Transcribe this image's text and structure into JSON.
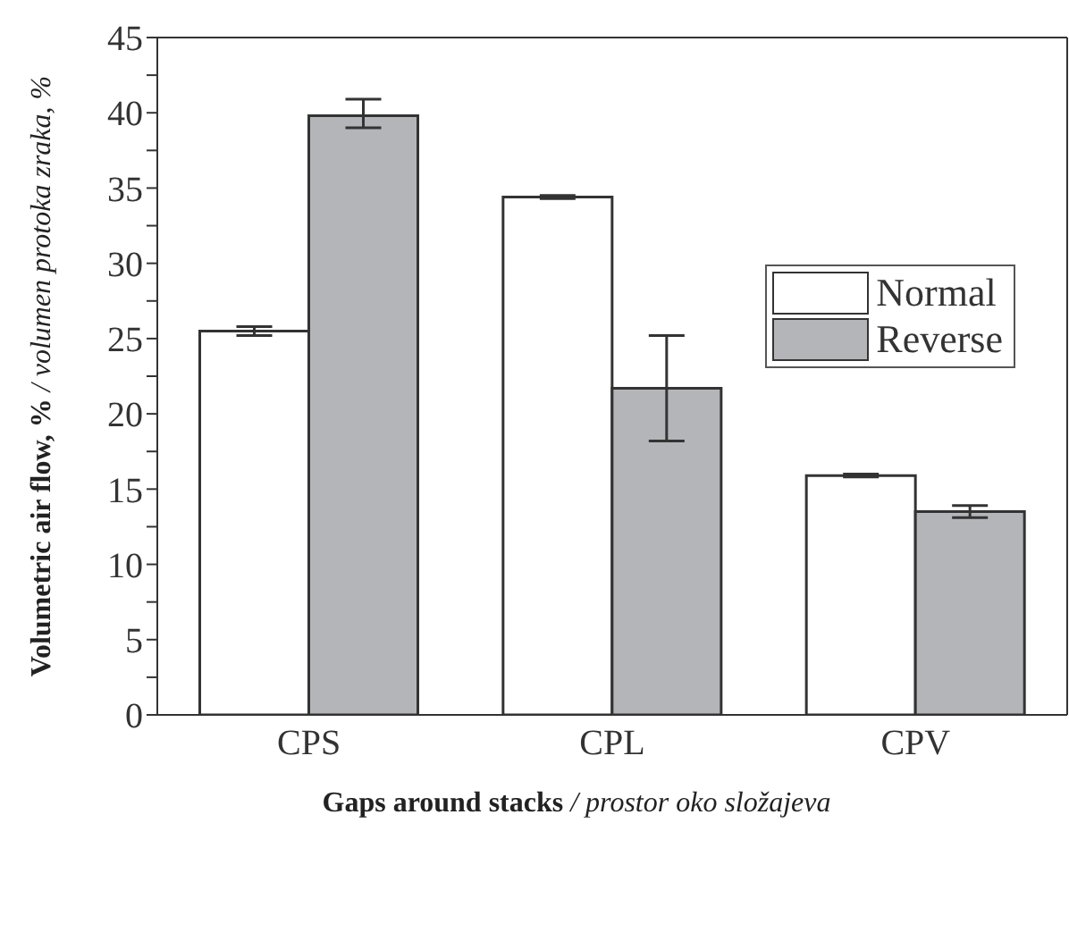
{
  "chart_data": {
    "type": "bar",
    "xlabel": "Gaps around stacks / prostor oko složajeva",
    "ylabel": "Volumetric air flow, % / volumen protoka zraka, %",
    "categories": [
      "CPS",
      "CPL",
      "CPV"
    ],
    "series": [
      {
        "name": "Normal",
        "color": "#ffffff",
        "values": [
          25.5,
          34.4,
          15.9
        ],
        "errors": [
          0.3,
          0.1,
          0.1
        ]
      },
      {
        "name": "Reverse",
        "color": "#b4b5b9",
        "values": [
          39.8,
          21.7,
          13.5
        ],
        "errors": [
          [
            39.0,
            40.9
          ],
          [
            18.2,
            25.2
          ],
          0.4
        ]
      }
    ],
    "ylim": [
      0,
      45
    ],
    "yticks": [
      0,
      {
        "value": 2.5,
        "label": null
      },
      5,
      {
        "value": 7.5,
        "label": null
      },
      10,
      {
        "value": 12.5,
        "label": null
      },
      15,
      {
        "value": 17.5,
        "label": null
      },
      20,
      {
        "value": 22.5,
        "label": null
      },
      25,
      {
        "value": 27.5,
        "label": null
      },
      30,
      {
        "value": 32.5,
        "label": null
      },
      35,
      {
        "value": 37.5,
        "label": null
      },
      40,
      {
        "value": 42.5,
        "label": null
      },
      45
    ],
    "legend": "top right",
    "grid": false
  }
}
